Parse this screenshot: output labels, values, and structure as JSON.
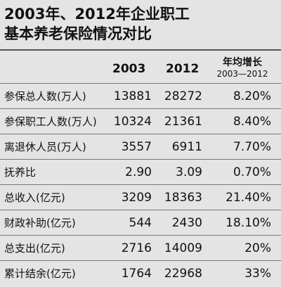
{
  "title": [
    "2003年、2012年企业职工",
    "基本养老保险情况对比"
  ],
  "table": {
    "columns": [
      "2003",
      "2012"
    ],
    "growth_header": {
      "title": "年均增长",
      "period": "2003—2012"
    },
    "rows": [
      [
        "参保总人数(万人)",
        "13881",
        "28272",
        "8.20%"
      ],
      [
        "参保职工人数(万人)",
        "10324",
        "21361",
        "8.40%"
      ],
      [
        "离退休人员(万人)",
        "3557",
        "6911",
        "7.70%"
      ],
      [
        "抚养比",
        "2.90",
        "3.09",
        "0.70%"
      ],
      [
        "总收入(亿元)",
        "3209",
        "18363",
        "21.40%"
      ],
      [
        "财政补助(亿元)",
        "544",
        "2430",
        "18.10%"
      ],
      [
        "总支出(亿元)",
        "2716",
        "14009",
        "20%"
      ],
      [
        "累计结余(亿元)",
        "1764",
        "22968",
        "33%"
      ]
    ]
  }
}
